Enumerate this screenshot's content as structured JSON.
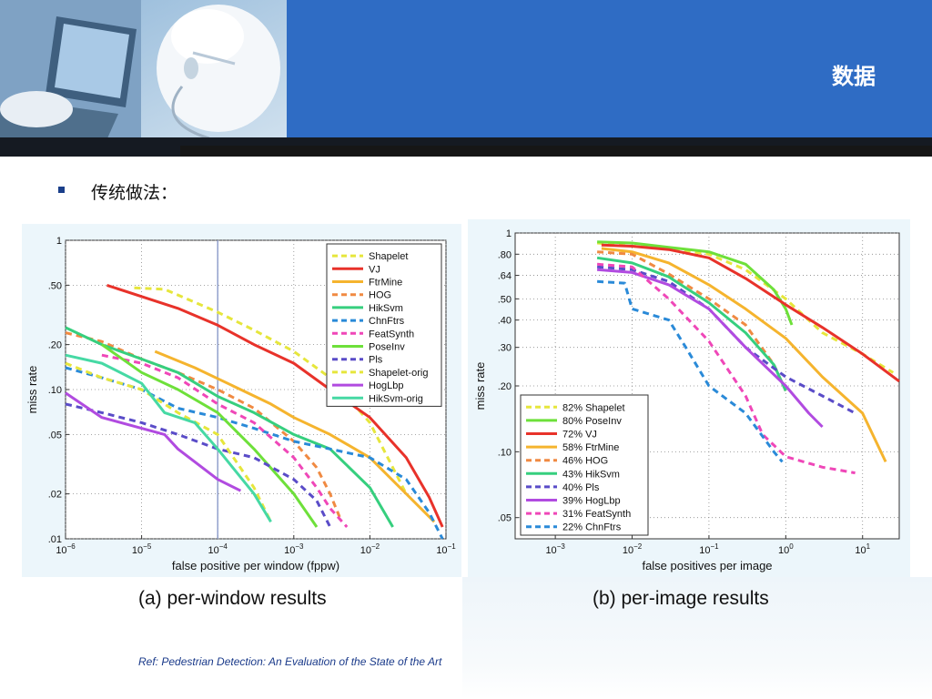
{
  "slide": {
    "title": "数据",
    "bullet": "传统做法：",
    "reference": "Ref: Pedestrian Detection: An Evaluation of the State of the Art"
  },
  "chart_data": [
    {
      "type": "line",
      "xscale": "log",
      "yscale": "log",
      "xlim": [
        1e-06,
        0.1
      ],
      "ylim": [
        0.01,
        1
      ],
      "xticks": [
        1e-06,
        1e-05,
        0.0001,
        0.001,
        0.01,
        0.1
      ],
      "xtick_labels": [
        "10−6",
        "10−5",
        "10−4",
        "10−3",
        "10−2",
        "10−1"
      ],
      "yticks": [
        0.01,
        0.02,
        0.05,
        0.1,
        0.2,
        0.5,
        1
      ],
      "ytick_labels": [
        ".01",
        ".02",
        ".05",
        ".10",
        ".20",
        ".50",
        "1"
      ],
      "xlabel": "false positive per window (fppw)",
      "ylabel": "miss rate",
      "caption": "(a)  per-window results",
      "grid": true,
      "legend_position": "top-right",
      "reference_line_x": 0.0001,
      "series": [
        {
          "name": "Shapelet",
          "color": "#e6e63c",
          "dash": "dashed",
          "points": [
            [
              8e-06,
              0.48
            ],
            [
              2e-05,
              0.47
            ],
            [
              0.0001,
              0.33
            ],
            [
              0.0003,
              0.25
            ],
            [
              0.001,
              0.18
            ],
            [
              0.003,
              0.12
            ],
            [
              0.01,
              0.06
            ],
            [
              0.03,
              0.02
            ]
          ]
        },
        {
          "name": "VJ",
          "color": "#e8322a",
          "dash": "solid",
          "points": [
            [
              3.5e-06,
              0.5
            ],
            [
              1e-05,
              0.42
            ],
            [
              3e-05,
              0.35
            ],
            [
              0.0001,
              0.27
            ],
            [
              0.0003,
              0.2
            ],
            [
              0.001,
              0.15
            ],
            [
              0.003,
              0.1
            ],
            [
              0.01,
              0.065
            ],
            [
              0.03,
              0.035
            ],
            [
              0.06,
              0.019
            ],
            [
              0.09,
              0.012
            ]
          ]
        },
        {
          "name": "FtrMine",
          "color": "#f5b42e",
          "dash": "solid",
          "points": [
            [
              1.5e-05,
              0.18
            ],
            [
              5e-05,
              0.14
            ],
            [
              0.0002,
              0.1
            ],
            [
              0.0005,
              0.08
            ],
            [
              0.001,
              0.065
            ],
            [
              0.003,
              0.05
            ],
            [
              0.01,
              0.035
            ],
            [
              0.03,
              0.02
            ],
            [
              0.07,
              0.013
            ]
          ]
        },
        {
          "name": "HOG",
          "color": "#f08a42",
          "dash": "dashed",
          "points": [
            [
              1e-06,
              0.24
            ],
            [
              3e-06,
              0.21
            ],
            [
              1e-05,
              0.16
            ],
            [
              3e-05,
              0.13
            ],
            [
              0.0001,
              0.1
            ],
            [
              0.0003,
              0.075
            ],
            [
              0.001,
              0.045
            ],
            [
              0.002,
              0.03
            ],
            [
              0.003,
              0.02
            ],
            [
              0.004,
              0.014
            ]
          ]
        },
        {
          "name": "HikSvm",
          "color": "#36cf7e",
          "dash": "solid",
          "points": [
            [
              1e-06,
              0.26
            ],
            [
              3e-06,
              0.2
            ],
            [
              1e-05,
              0.16
            ],
            [
              3e-05,
              0.13
            ],
            [
              0.0001,
              0.09
            ],
            [
              0.0003,
              0.07
            ],
            [
              0.001,
              0.05
            ],
            [
              0.003,
              0.04
            ],
            [
              0.01,
              0.022
            ],
            [
              0.02,
              0.012
            ]
          ]
        },
        {
          "name": "ChnFtrs",
          "color": "#2a8ad8",
          "dash": "dashed",
          "points": [
            [
              1e-06,
              0.14
            ],
            [
              3e-06,
              0.12
            ],
            [
              1e-05,
              0.1
            ],
            [
              3e-05,
              0.075
            ],
            [
              0.0001,
              0.065
            ],
            [
              0.0003,
              0.055
            ],
            [
              0.001,
              0.045
            ],
            [
              0.003,
              0.04
            ],
            [
              0.01,
              0.035
            ],
            [
              0.03,
              0.025
            ],
            [
              0.06,
              0.015
            ],
            [
              0.09,
              0.01
            ]
          ]
        },
        {
          "name": "FeatSynth",
          "color": "#ef47b8",
          "dash": "dashed",
          "points": [
            [
              3e-06,
              0.17
            ],
            [
              1e-05,
              0.15
            ],
            [
              3e-05,
              0.12
            ],
            [
              0.0001,
              0.08
            ],
            [
              0.0003,
              0.06
            ],
            [
              0.001,
              0.035
            ],
            [
              0.002,
              0.022
            ],
            [
              0.003,
              0.016
            ],
            [
              0.005,
              0.012
            ]
          ]
        },
        {
          "name": "PoseInv",
          "color": "#6ee03a",
          "dash": "solid",
          "points": [
            [
              3e-06,
              0.2
            ],
            [
              1e-05,
              0.13
            ],
            [
              3e-05,
              0.1
            ],
            [
              0.0001,
              0.07
            ],
            [
              0.0003,
              0.04
            ],
            [
              0.001,
              0.02
            ],
            [
              0.002,
              0.012
            ]
          ]
        },
        {
          "name": "Pls",
          "color": "#5a4cc8",
          "dash": "dashed",
          "points": [
            [
              1e-06,
              0.08
            ],
            [
              3e-06,
              0.07
            ],
            [
              1e-05,
              0.06
            ],
            [
              3e-05,
              0.05
            ],
            [
              0.0001,
              0.04
            ],
            [
              0.0003,
              0.035
            ],
            [
              0.001,
              0.025
            ],
            [
              0.002,
              0.018
            ],
            [
              0.003,
              0.012
            ]
          ]
        },
        {
          "name": "Shapelet-orig",
          "color": "#e6e63c",
          "dash": "dashed",
          "points": [
            [
              1e-06,
              0.15
            ],
            [
              3e-06,
              0.12
            ],
            [
              1e-05,
              0.1
            ],
            [
              3e-05,
              0.07
            ],
            [
              0.0001,
              0.05
            ],
            [
              0.0003,
              0.022
            ],
            [
              0.0005,
              0.013
            ]
          ]
        },
        {
          "name": "HogLbp",
          "color": "#b14be0",
          "dash": "solid",
          "points": [
            [
              1e-06,
              0.095
            ],
            [
              3e-06,
              0.065
            ],
            [
              1e-05,
              0.055
            ],
            [
              2e-05,
              0.05
            ],
            [
              3e-05,
              0.04
            ],
            [
              0.0001,
              0.025
            ],
            [
              0.0002,
              0.021
            ]
          ]
        },
        {
          "name": "HikSvm-orig",
          "color": "#46d9a4",
          "dash": "solid",
          "points": [
            [
              1e-06,
              0.17
            ],
            [
              3e-06,
              0.15
            ],
            [
              1e-05,
              0.11
            ],
            [
              2e-05,
              0.07
            ],
            [
              5e-05,
              0.06
            ],
            [
              0.0001,
              0.04
            ],
            [
              0.0003,
              0.02
            ],
            [
              0.0005,
              0.013
            ]
          ]
        }
      ]
    },
    {
      "type": "line",
      "xscale": "log",
      "yscale": "log",
      "xlim": [
        0.0003,
        30
      ],
      "ylim": [
        0.04,
        1
      ],
      "xticks": [
        0.001,
        0.01,
        0.1,
        1,
        10
      ],
      "xtick_labels": [
        "10−3",
        "10−2",
        "10−1",
        "100",
        "101"
      ],
      "yticks": [
        0.05,
        0.1,
        0.2,
        0.3,
        0.4,
        0.5,
        0.64,
        0.8,
        1
      ],
      "ytick_labels": [
        ".05",
        ".10",
        ".20",
        ".30",
        ".40",
        ".50",
        ".64",
        ".80",
        "1"
      ],
      "xlabel": "false positives per image",
      "ylabel": "miss rate",
      "caption": "(b)  per-image results",
      "grid": true,
      "legend_position": "bottom-left",
      "series": [
        {
          "name": "82% Shapelet",
          "color": "#e6e63c",
          "dash": "dashed",
          "points": [
            [
              0.0035,
              0.9
            ],
            [
              0.01,
              0.87
            ],
            [
              0.03,
              0.85
            ],
            [
              0.1,
              0.8
            ],
            [
              0.3,
              0.68
            ],
            [
              1,
              0.5
            ],
            [
              3,
              0.35
            ],
            [
              10,
              0.28
            ],
            [
              25,
              0.23
            ]
          ]
        },
        {
          "name": "80% PoseInv",
          "color": "#6ee03a",
          "dash": "solid",
          "points": [
            [
              0.0035,
              0.91
            ],
            [
              0.01,
              0.9
            ],
            [
              0.03,
              0.86
            ],
            [
              0.1,
              0.82
            ],
            [
              0.3,
              0.72
            ],
            [
              0.7,
              0.55
            ],
            [
              1,
              0.45
            ],
            [
              1.2,
              0.38
            ]
          ]
        },
        {
          "name": "72% VJ",
          "color": "#e8322a",
          "dash": "solid",
          "points": [
            [
              0.004,
              0.88
            ],
            [
              0.01,
              0.87
            ],
            [
              0.03,
              0.84
            ],
            [
              0.1,
              0.77
            ],
            [
              0.3,
              0.62
            ],
            [
              1,
              0.47
            ],
            [
              3,
              0.37
            ],
            [
              10,
              0.28
            ],
            [
              30,
              0.21
            ]
          ]
        },
        {
          "name": "58% FtrMine",
          "color": "#f5b42e",
          "dash": "solid",
          "points": [
            [
              0.004,
              0.85
            ],
            [
              0.01,
              0.82
            ],
            [
              0.03,
              0.73
            ],
            [
              0.1,
              0.58
            ],
            [
              0.3,
              0.45
            ],
            [
              1,
              0.33
            ],
            [
              3,
              0.22
            ],
            [
              10,
              0.15
            ],
            [
              20,
              0.09
            ]
          ]
        },
        {
          "name": "46% HOG",
          "color": "#f08a42",
          "dash": "dashed",
          "points": [
            [
              0.0035,
              0.82
            ],
            [
              0.01,
              0.8
            ],
            [
              0.03,
              0.65
            ],
            [
              0.1,
              0.5
            ],
            [
              0.3,
              0.38
            ],
            [
              0.7,
              0.25
            ],
            [
              1,
              0.19
            ]
          ]
        },
        {
          "name": "43% HikSvm",
          "color": "#36cf7e",
          "dash": "solid",
          "points": [
            [
              0.0035,
              0.77
            ],
            [
              0.01,
              0.73
            ],
            [
              0.03,
              0.63
            ],
            [
              0.1,
              0.48
            ],
            [
              0.3,
              0.35
            ],
            [
              0.7,
              0.25
            ],
            [
              1,
              0.19
            ]
          ]
        },
        {
          "name": "40% Pls",
          "color": "#5a4cc8",
          "dash": "dashed",
          "points": [
            [
              0.0035,
              0.7
            ],
            [
              0.01,
              0.68
            ],
            [
              0.03,
              0.6
            ],
            [
              0.1,
              0.45
            ],
            [
              0.3,
              0.3
            ],
            [
              1,
              0.22
            ],
            [
              3,
              0.18
            ],
            [
              8,
              0.15
            ]
          ]
        },
        {
          "name": "39% HogLbp",
          "color": "#b14be0",
          "dash": "solid",
          "points": [
            [
              0.0035,
              0.68
            ],
            [
              0.01,
              0.66
            ],
            [
              0.03,
              0.58
            ],
            [
              0.1,
              0.45
            ],
            [
              0.3,
              0.3
            ],
            [
              1,
              0.2
            ],
            [
              2,
              0.15
            ],
            [
              3,
              0.13
            ]
          ]
        },
        {
          "name": "31% FeatSynth",
          "color": "#ef47b8",
          "dash": "dashed",
          "points": [
            [
              0.0035,
              0.72
            ],
            [
              0.01,
              0.7
            ],
            [
              0.03,
              0.5
            ],
            [
              0.1,
              0.32
            ],
            [
              0.3,
              0.18
            ],
            [
              0.5,
              0.12
            ],
            [
              1,
              0.095
            ],
            [
              3,
              0.085
            ],
            [
              8,
              0.08
            ]
          ]
        },
        {
          "name": "22% ChnFtrs",
          "color": "#2a8ad8",
          "dash": "dashed",
          "points": [
            [
              0.0035,
              0.6
            ],
            [
              0.008,
              0.59
            ],
            [
              0.01,
              0.45
            ],
            [
              0.03,
              0.4
            ],
            [
              0.05,
              0.3
            ],
            [
              0.1,
              0.2
            ],
            [
              0.3,
              0.15
            ],
            [
              0.7,
              0.1
            ],
            [
              0.9,
              0.09
            ]
          ]
        }
      ]
    }
  ]
}
